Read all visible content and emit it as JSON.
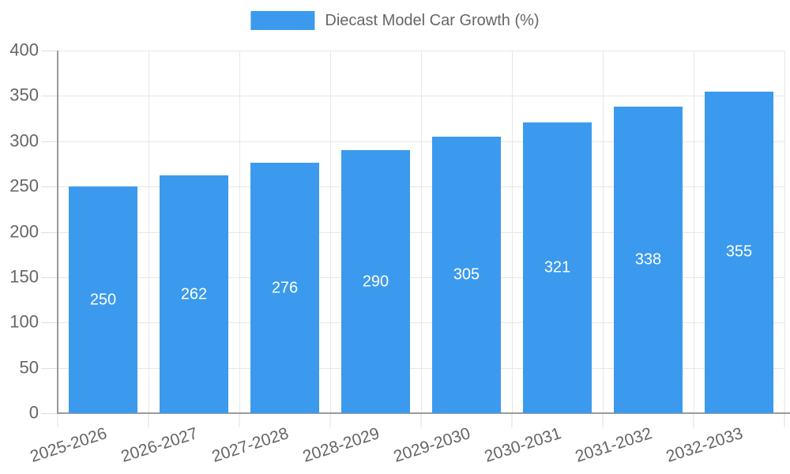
{
  "chart_data": {
    "type": "bar",
    "title": "Diecast Model Car Growth (%)",
    "legend": {
      "label": "Diecast Model Car Growth (%)",
      "position": "top-center"
    },
    "categories": [
      "2025-2026",
      "2026-2027",
      "2027-2028",
      "2028-2029",
      "2029-2030",
      "2030-2031",
      "2031-2032",
      "2032-2033"
    ],
    "series": [
      {
        "name": "Diecast Model Car Growth (%)",
        "values": [
          250,
          262,
          276,
          290,
          305,
          321,
          338,
          355
        ]
      }
    ],
    "xlabel": "",
    "ylabel": "",
    "ylim": [
      0,
      400
    ],
    "ytick_step": 50,
    "yticks": [
      0,
      50,
      100,
      150,
      200,
      250,
      300,
      350,
      400
    ],
    "grid": true,
    "x_label_rotation_deg": -18,
    "bar_value_labels": {
      "position": "inside-center",
      "color": "#FFFFFF"
    },
    "colors": {
      "bar": "#3B9AED",
      "grid": "#E7E7E7",
      "axis": "#9B9B9B",
      "tick": "#DEDEDE",
      "text": "#666666"
    }
  }
}
